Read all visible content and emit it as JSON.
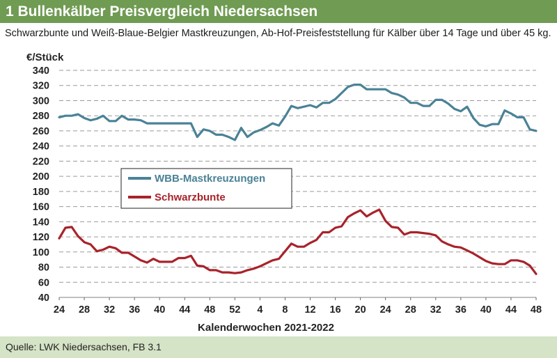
{
  "title": "1 Bullenkälber Preisvergleich Niedersachsen",
  "subtitle": "Schwarzbunte und Weiß-Blaue-Belgier Mastkreuzungen, Ab-Hof-Preisfeststellung für Kälber über 14 Tage und über 45 kg.",
  "source": "Quelle: LWK Niedersachsen, FB 3.1",
  "colors": {
    "header_bg": "#6f9b52",
    "footer_bg": "#d5e3c6",
    "series_wbb": "#4a8296",
    "series_sb": "#a8232b",
    "grid": "#9a9a9a"
  },
  "chart_data": {
    "type": "line",
    "ylabel": "€/Stück",
    "xlabel": "Kalenderwochen  2021-2022",
    "ylim": [
      40,
      340
    ],
    "yticks": [
      40,
      60,
      80,
      100,
      120,
      140,
      160,
      180,
      200,
      220,
      240,
      260,
      280,
      300,
      320,
      340
    ],
    "x_tick_labels": [
      "24",
      "28",
      "32",
      "36",
      "40",
      "44",
      "48",
      "52",
      "4",
      "8",
      "12",
      "16",
      "20",
      "24",
      "28",
      "32",
      "36",
      "40",
      "44",
      "48"
    ],
    "x_tick_every": 4,
    "grid": "horizontal dashed",
    "legend": "center-left",
    "series": [
      {
        "name": "WBB-Mastkreuzungen",
        "color": "#4a8296",
        "values": [
          278,
          280,
          280,
          282,
          277,
          274,
          276,
          280,
          273,
          273,
          280,
          275,
          275,
          274,
          270,
          270,
          270,
          270,
          270,
          270,
          270,
          270,
          252,
          262,
          260,
          255,
          255,
          252,
          248,
          264,
          252,
          258,
          261,
          265,
          270,
          267,
          279,
          293,
          290,
          292,
          294,
          291,
          297,
          297,
          302,
          310,
          318,
          321,
          321,
          315,
          315,
          315,
          315,
          310,
          308,
          304,
          297,
          297,
          293,
          293,
          301,
          301,
          296,
          289,
          286,
          292,
          277,
          268,
          266,
          269,
          269,
          287,
          283,
          278,
          278,
          262,
          260
        ]
      },
      {
        "name": "Schwarzbunte",
        "color": "#a8232b",
        "values": [
          118,
          132,
          133,
          121,
          113,
          110,
          101,
          103,
          107,
          105,
          99,
          99,
          94,
          89,
          86,
          91,
          87,
          87,
          87,
          92,
          92,
          95,
          82,
          81,
          76,
          76,
          73,
          73,
          72,
          73,
          76,
          78,
          81,
          85,
          89,
          91,
          101,
          111,
          107,
          107,
          112,
          116,
          126,
          126,
          132,
          134,
          146,
          151,
          155,
          147,
          152,
          156,
          141,
          133,
          132,
          123,
          126,
          126,
          125,
          124,
          122,
          114,
          110,
          107,
          106,
          102,
          98,
          93,
          88,
          85,
          84,
          84,
          89,
          89,
          87,
          82,
          71
        ]
      }
    ]
  }
}
